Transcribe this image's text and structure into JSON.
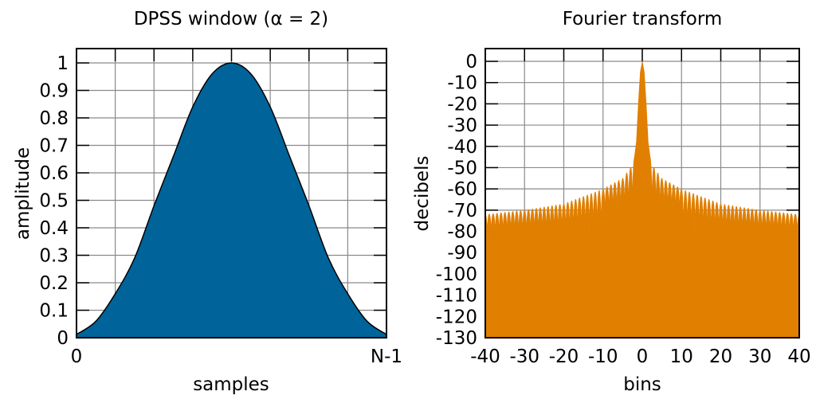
{
  "chart_data": [
    {
      "type": "area",
      "title": "DPSS window (α = 2)",
      "xlabel": "samples",
      "ylabel": "amplitude",
      "xlim": [
        0,
        1
      ],
      "ylim": [
        0,
        1
      ],
      "x_tick_labels": [
        "0",
        "N-1"
      ],
      "y_ticks": [
        0,
        0.1,
        0.2,
        0.3,
        0.4,
        0.5,
        0.6,
        0.7,
        0.8,
        0.9,
        1
      ],
      "y_tick_labels": [
        "0",
        "0.1",
        "0.2",
        "0.3",
        "0.4",
        "0.5",
        "0.6",
        "0.7",
        "0.8",
        "0.9",
        "1"
      ],
      "grid": true,
      "color": "#00649a",
      "x_fraction": [
        0,
        0.0625,
        0.125,
        0.1875,
        0.25,
        0.3125,
        0.375,
        0.4375,
        0.5,
        0.5625,
        0.625,
        0.6875,
        0.75,
        0.8125,
        0.875,
        0.9375,
        1
      ],
      "values": [
        0.012,
        0.06,
        0.16,
        0.29,
        0.48,
        0.66,
        0.84,
        0.96,
        1,
        0.96,
        0.84,
        0.66,
        0.48,
        0.29,
        0.16,
        0.06,
        0.012
      ]
    },
    {
      "type": "area",
      "title": "Fourier transform",
      "xlabel": "bins",
      "ylabel": "decibels",
      "xlim": [
        -40,
        40
      ],
      "ylim": [
        -130,
        0
      ],
      "x_ticks": [
        -40,
        -30,
        -20,
        -10,
        0,
        10,
        20,
        30,
        40
      ],
      "x_tick_labels": [
        "-40",
        "-30",
        "-20",
        "-10",
        "0",
        "10",
        "20",
        "30",
        "40"
      ],
      "y_ticks": [
        0,
        -10,
        -20,
        -30,
        -40,
        -50,
        -60,
        -70,
        -80,
        -90,
        -100,
        -110,
        -120,
        -130
      ],
      "y_tick_labels": [
        "0",
        "-10",
        "-20",
        "-30",
        "-40",
        "-50",
        "-60",
        "-70",
        "-80",
        "-90",
        "-100",
        "-110",
        "-120",
        "-130"
      ],
      "grid": true,
      "color": "#e07f00",
      "main_lobe": {
        "bins": [
          0,
          0.5,
          1,
          1.5,
          2
        ],
        "db": [
          0,
          -5,
          -20,
          -38,
          -45
        ]
      },
      "sidelobe_peaks": {
        "bins": [
          2,
          3,
          5,
          10,
          20,
          30,
          40
        ],
        "db": [
          -45,
          -50,
          -55,
          -60,
          -67,
          -70,
          -72
        ]
      },
      "null_floor_db": -84
    }
  ]
}
